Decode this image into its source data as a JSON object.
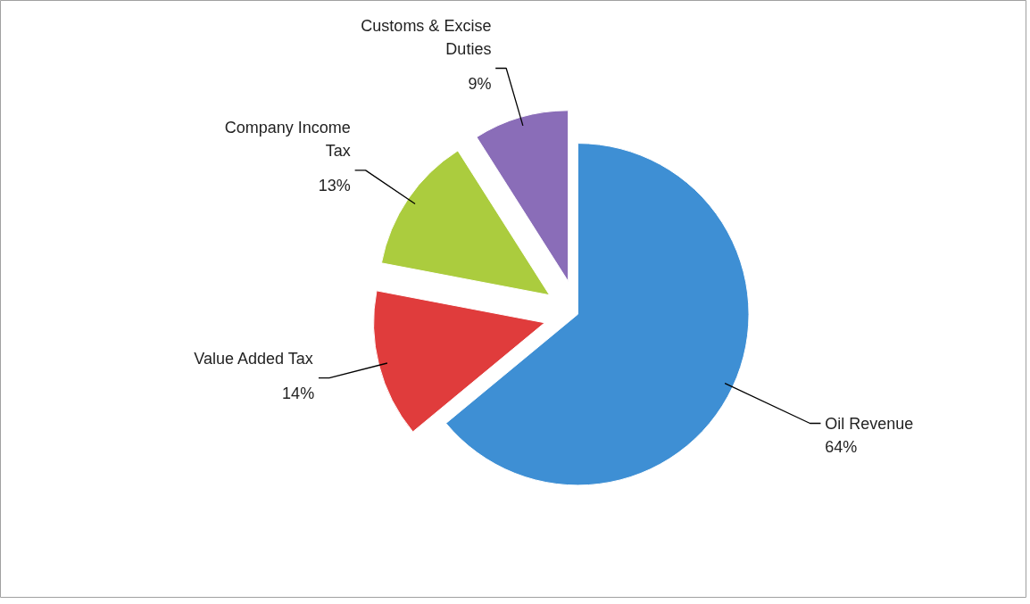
{
  "chart_data": {
    "type": "pie",
    "categories": [
      "Oil Revenue",
      "Value Added Tax",
      "Company Income Tax",
      "Customs & Excise Duties"
    ],
    "values": [
      64,
      14,
      13,
      9
    ],
    "value_labels": [
      "64%",
      "14%",
      "13%",
      "9%"
    ],
    "colors": [
      "#3e8fd4",
      "#e03c3c",
      "#abcc3e",
      "#8a6db8"
    ]
  }
}
